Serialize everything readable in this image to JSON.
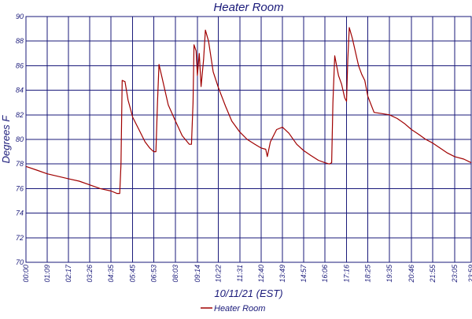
{
  "chart_data": {
    "type": "line",
    "title": "Heater Room",
    "xlabel": "10/11/21 (EST)",
    "ylabel": "Degrees F",
    "ylim": [
      70,
      90
    ],
    "yticks": [
      70,
      72,
      74,
      76,
      78,
      80,
      82,
      84,
      86,
      88,
      90
    ],
    "xlim": [
      "00:00",
      "23:59"
    ],
    "xtick_labels": [
      "00:00",
      "01:09",
      "02:17",
      "03:26",
      "04:35",
      "05:45",
      "06:53",
      "08:03",
      "09:14",
      "10:22",
      "11:31",
      "12:40",
      "13:49",
      "14:57",
      "16:06",
      "17:16",
      "18:25",
      "19:35",
      "20:46",
      "21:55",
      "23:05",
      "23:59"
    ],
    "grid": true,
    "legend_position": "bottom-center",
    "colors": {
      "series": "#a00000",
      "axis": "#1a1a7a"
    },
    "series": [
      {
        "name": "Heater Room",
        "points": [
          [
            "00:00",
            77.8
          ],
          [
            "00:35",
            77.5
          ],
          [
            "01:09",
            77.2
          ],
          [
            "01:43",
            77.0
          ],
          [
            "02:17",
            76.8
          ],
          [
            "02:52",
            76.6
          ],
          [
            "03:26",
            76.3
          ],
          [
            "04:00",
            76.0
          ],
          [
            "04:35",
            75.8
          ],
          [
            "04:54",
            75.6
          ],
          [
            "05:03",
            75.6
          ],
          [
            "05:07",
            78.0
          ],
          [
            "05:11",
            84.8
          ],
          [
            "05:20",
            84.7
          ],
          [
            "05:30",
            83.2
          ],
          [
            "05:45",
            81.8
          ],
          [
            "06:05",
            80.8
          ],
          [
            "06:25",
            79.8
          ],
          [
            "06:40",
            79.3
          ],
          [
            "06:53",
            79.0
          ],
          [
            "07:00",
            79.0
          ],
          [
            "07:05",
            83.0
          ],
          [
            "07:10",
            86.1
          ],
          [
            "07:20",
            85.0
          ],
          [
            "07:40",
            82.8
          ],
          [
            "08:03",
            81.5
          ],
          [
            "08:25",
            80.3
          ],
          [
            "08:48",
            79.6
          ],
          [
            "08:55",
            79.6
          ],
          [
            "09:00",
            83.0
          ],
          [
            "09:03",
            87.7
          ],
          [
            "09:10",
            87.2
          ],
          [
            "09:14",
            85.2
          ],
          [
            "09:20",
            87.0
          ],
          [
            "09:26",
            84.3
          ],
          [
            "09:34",
            86.5
          ],
          [
            "09:40",
            88.9
          ],
          [
            "09:50",
            88.0
          ],
          [
            "10:05",
            85.5
          ],
          [
            "10:22",
            84.2
          ],
          [
            "10:45",
            82.7
          ],
          [
            "11:05",
            81.5
          ],
          [
            "11:31",
            80.6
          ],
          [
            "11:55",
            80.0
          ],
          [
            "12:20",
            79.6
          ],
          [
            "12:40",
            79.3
          ],
          [
            "12:55",
            79.2
          ],
          [
            "13:00",
            78.6
          ],
          [
            "13:10",
            79.8
          ],
          [
            "13:30",
            80.8
          ],
          [
            "13:49",
            81.0
          ],
          [
            "14:10",
            80.5
          ],
          [
            "14:35",
            79.6
          ],
          [
            "14:57",
            79.1
          ],
          [
            "15:20",
            78.7
          ],
          [
            "15:45",
            78.3
          ],
          [
            "16:06",
            78.1
          ],
          [
            "16:20",
            78.0
          ],
          [
            "16:28",
            78.1
          ],
          [
            "16:32",
            83.0
          ],
          [
            "16:38",
            86.8
          ],
          [
            "16:50",
            85.2
          ],
          [
            "17:00",
            84.5
          ],
          [
            "17:10",
            83.4
          ],
          [
            "17:16",
            83.1
          ],
          [
            "17:20",
            86.5
          ],
          [
            "17:25",
            89.1
          ],
          [
            "17:35",
            88.2
          ],
          [
            "17:55",
            86.0
          ],
          [
            "18:05",
            85.3
          ],
          [
            "18:15",
            84.8
          ],
          [
            "18:25",
            83.5
          ],
          [
            "18:45",
            82.2
          ],
          [
            "19:10",
            82.1
          ],
          [
            "19:35",
            82.0
          ],
          [
            "20:00",
            81.7
          ],
          [
            "20:23",
            81.3
          ],
          [
            "20:46",
            80.8
          ],
          [
            "21:10",
            80.4
          ],
          [
            "21:32",
            80.0
          ],
          [
            "21:55",
            79.7
          ],
          [
            "22:18",
            79.3
          ],
          [
            "22:42",
            78.9
          ],
          [
            "23:05",
            78.6
          ],
          [
            "23:35",
            78.4
          ],
          [
            "23:59",
            78.1
          ]
        ]
      }
    ]
  }
}
